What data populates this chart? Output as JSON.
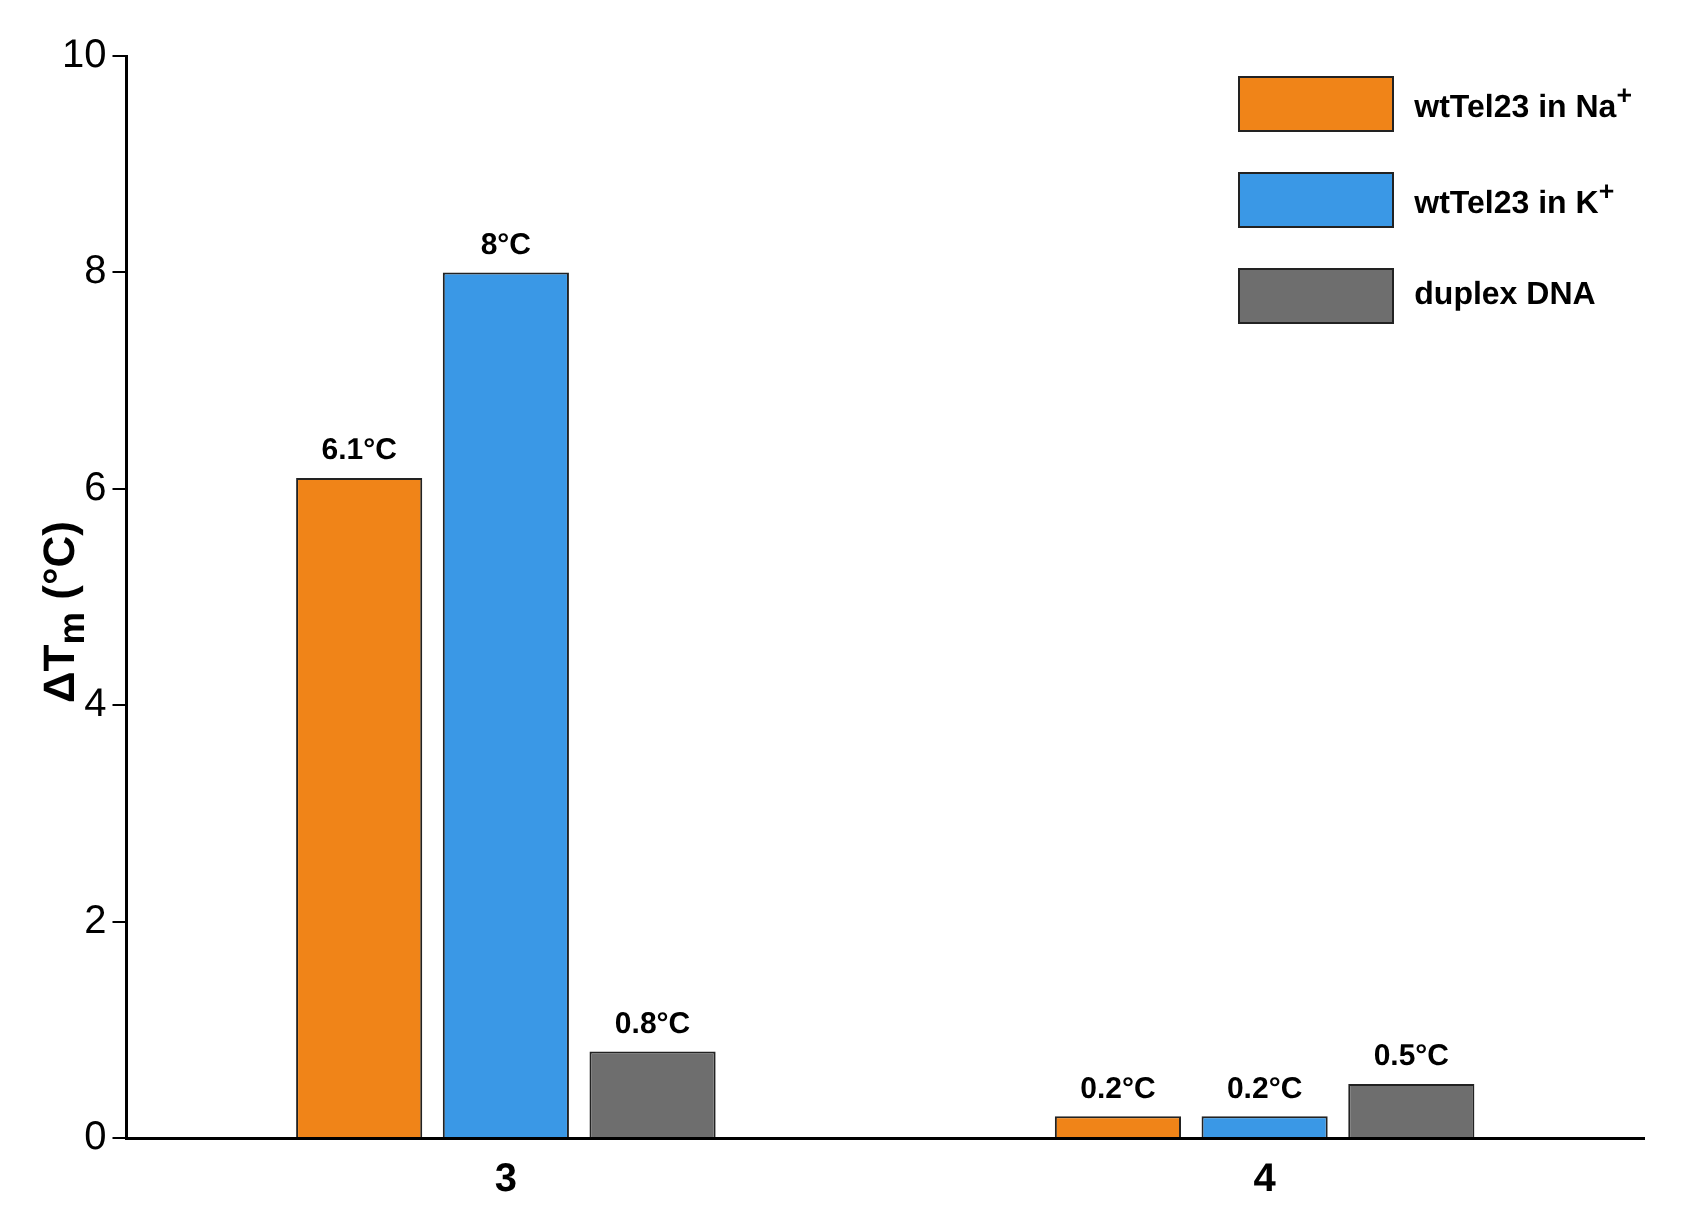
{
  "chart_data": {
    "type": "bar",
    "ylabel": "ΔT$_{m}$ (°C)",
    "categories": [
      "3",
      "4"
    ],
    "series": [
      {
        "name": "wtTel23 in Na$^{+}$",
        "color": "#f08418",
        "values": [
          6.1,
          0.2
        ],
        "value_labels": [
          "6.1°C",
          "0.2°C"
        ]
      },
      {
        "name": "wtTel23 in K$^{+}$",
        "color": "#3a98e6",
        "values": [
          8,
          0.2
        ],
        "value_labels": [
          "8°C",
          "0.2°C"
        ]
      },
      {
        "name": "duplex DNA",
        "color": "#6e6e6e",
        "values": [
          0.8,
          0.5
        ],
        "value_labels": [
          "0.8°C",
          "0.5°C"
        ]
      }
    ],
    "ylim": [
      0,
      10
    ],
    "yticks": [
      0,
      2,
      4,
      6,
      8,
      10
    ],
    "grid": false,
    "legend": "top right"
  }
}
